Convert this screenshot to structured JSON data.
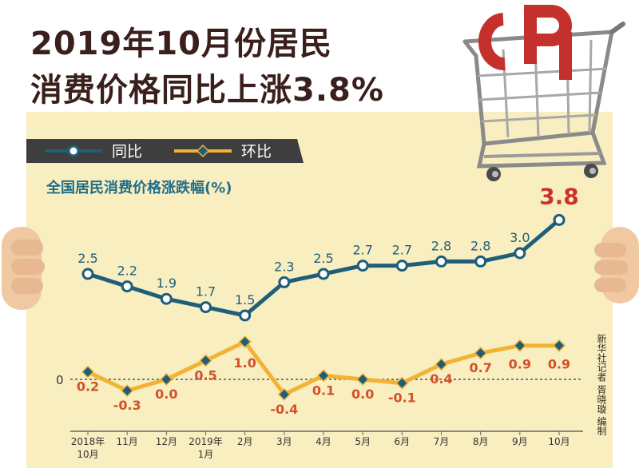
{
  "headline": {
    "line1": "2019年10月份居民",
    "line2": "消费价格同比上涨3.8%"
  },
  "legend": {
    "yoy_label": "同比",
    "mom_label": "环比"
  },
  "subtitle": "全国居民消费价格涨跌幅(%)",
  "credit": "新华社记者 胥晓璇 编制",
  "colors": {
    "yoy": "#1e5e7a",
    "mom": "#f2b233",
    "mom_labels": "#d2512a",
    "panel": "#f8eec0",
    "headline": "#3a1f1c",
    "highlight": "#c8342a"
  },
  "chart_data": {
    "type": "line",
    "categories": [
      "2018年\n10月",
      "11月",
      "12月",
      "2019年\n1月",
      "2月",
      "3月",
      "4月",
      "5月",
      "6月",
      "7月",
      "8月",
      "9月",
      "10月"
    ],
    "series": [
      {
        "name": "同比",
        "values": [
          2.5,
          2.2,
          1.9,
          1.7,
          1.5,
          2.3,
          2.5,
          2.7,
          2.7,
          2.8,
          2.8,
          3.0,
          3.8
        ]
      },
      {
        "name": "环比",
        "values": [
          0.2,
          -0.3,
          0.0,
          0.5,
          1.0,
          -0.4,
          0.1,
          0.0,
          -0.1,
          0.4,
          0.7,
          0.9,
          0.9
        ]
      }
    ],
    "yoy_labels": [
      "2.5",
      "2.2",
      "1.9",
      "1.7",
      "1.5",
      "2.3",
      "2.5",
      "2.7",
      "2.7",
      "2.8",
      "2.8",
      "3.0",
      "3.8"
    ],
    "mom_labels": [
      "0.2",
      "-0.3",
      "0.0",
      "0.5",
      "1.0",
      "-0.4",
      "0.1",
      "0.0",
      "-0.1",
      "0.4",
      "0.7",
      "0.9",
      "0.9"
    ],
    "zero_label": "0",
    "grid": false,
    "legend_position": "top-left"
  }
}
